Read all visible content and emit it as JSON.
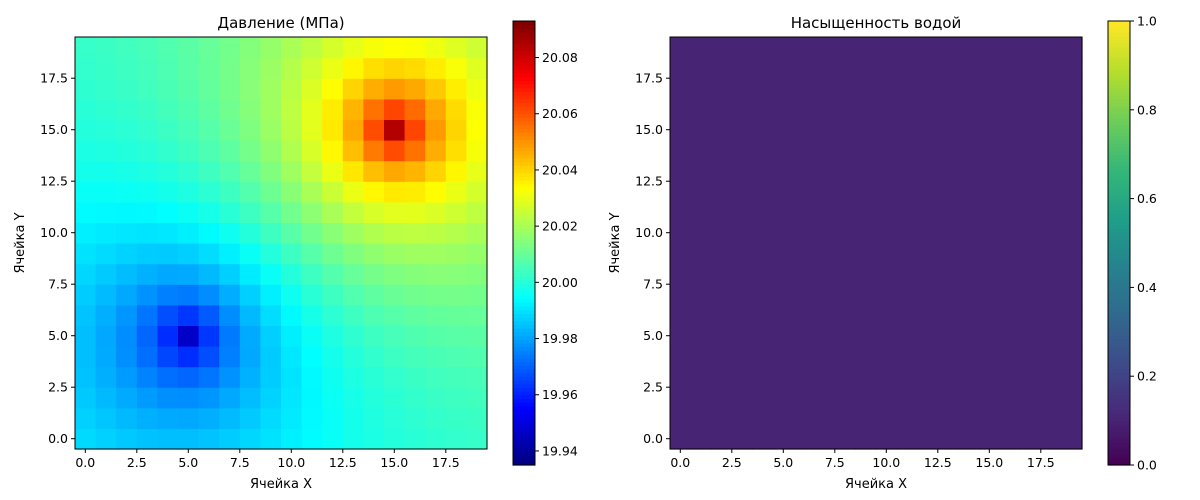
{
  "chart_data": [
    {
      "type": "heatmap",
      "title": "Давление (МПа)",
      "xlabel": "Ячейка X",
      "ylabel": "Ячейка Y",
      "grid_size": [
        20,
        20
      ],
      "xlim": [
        -0.5,
        19.5
      ],
      "ylim": [
        -0.5,
        19.5
      ],
      "xticks": [
        0.0,
        2.5,
        5.0,
        7.5,
        10.0,
        12.5,
        15.0,
        17.5
      ],
      "xtick_labels": [
        "0.0",
        "2.5",
        "5.0",
        "7.5",
        "10.0",
        "12.5",
        "15.0",
        "17.5"
      ],
      "yticks": [
        0.0,
        2.5,
        5.0,
        7.5,
        10.0,
        12.5,
        15.0,
        17.5
      ],
      "ytick_labels": [
        "0.0",
        "2.5",
        "5.0",
        "7.5",
        "10.0",
        "12.5",
        "15.0",
        "17.5"
      ],
      "colormap": "jet",
      "vmin": 19.935,
      "vmax": 20.093,
      "colorbar_ticks": [
        19.94,
        19.96,
        19.98,
        20.0,
        20.02,
        20.04,
        20.06,
        20.08
      ],
      "colorbar_tick_labels": [
        "19.94",
        "19.96",
        "19.98",
        "20.00",
        "20.02",
        "20.04",
        "20.06",
        "20.08"
      ],
      "field": {
        "base": 20.0,
        "min_cell": [
          5,
          5
        ],
        "min_value": 19.935,
        "max_cell": [
          15,
          15
        ],
        "max_value": 20.093
      }
    },
    {
      "type": "heatmap",
      "title": "Насыщенность водой",
      "xlabel": "Ячейка X",
      "ylabel": "Ячейка Y",
      "grid_size": [
        20,
        20
      ],
      "xlim": [
        -0.5,
        19.5
      ],
      "ylim": [
        -0.5,
        19.5
      ],
      "xticks": [
        0.0,
        2.5,
        5.0,
        7.5,
        10.0,
        12.5,
        15.0,
        17.5
      ],
      "xtick_labels": [
        "0.0",
        "2.5",
        "5.0",
        "7.5",
        "10.0",
        "12.5",
        "15.0",
        "17.5"
      ],
      "yticks": [
        0.0,
        2.5,
        5.0,
        7.5,
        10.0,
        12.5,
        15.0,
        17.5
      ],
      "ytick_labels": [
        "0.0",
        "2.5",
        "5.0",
        "7.5",
        "10.0",
        "12.5",
        "15.0",
        "17.5"
      ],
      "colormap": "viridis",
      "vmin": 0.0,
      "vmax": 1.0,
      "colorbar_ticks": [
        0.0,
        0.2,
        0.4,
        0.6,
        0.8,
        1.0
      ],
      "colorbar_tick_labels": [
        "0.0",
        "0.2",
        "0.4",
        "0.6",
        "0.8",
        "1.0"
      ],
      "uniform_value": 0.1
    }
  ]
}
